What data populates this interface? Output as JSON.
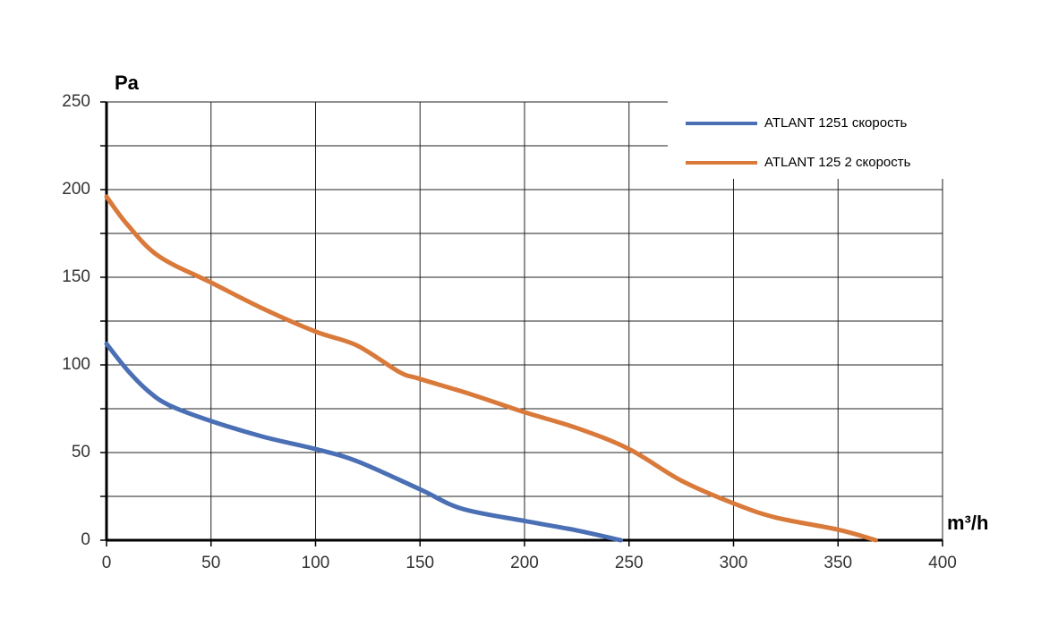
{
  "chart_data": {
    "type": "line",
    "y_label": "Pa",
    "x_label": "m³/h",
    "xlim": [
      0,
      400
    ],
    "xticks": [
      0,
      50,
      100,
      150,
      200,
      250,
      300,
      350,
      400
    ],
    "ylim": [
      0,
      250
    ],
    "yticks": [
      0,
      50,
      100,
      150,
      200,
      250
    ],
    "yminorticks": [
      25,
      75,
      125,
      175,
      225
    ],
    "grid": true,
    "legend": "top-right",
    "series": [
      {
        "name": "ATLANT 1251 скорость",
        "color": "#4a6fb5",
        "x": [
          0,
          10,
          20,
          30,
          50,
          75,
          100,
          120,
          150,
          170,
          200,
          225,
          246
        ],
        "values": [
          112,
          97,
          85,
          77,
          68,
          59,
          52,
          45,
          29,
          18,
          11,
          5.6,
          0
        ]
      },
      {
        "name": "ATLANT 125 2 скорость",
        "color": "#d9793a",
        "x": [
          0,
          10,
          25,
          50,
          75,
          100,
          120,
          140,
          150,
          175,
          200,
          225,
          250,
          275,
          300,
          320,
          350,
          368
        ],
        "values": [
          196,
          180,
          162,
          147,
          132,
          119,
          111,
          96,
          92,
          83,
          73,
          64,
          52,
          34,
          21,
          13,
          6,
          0
        ]
      }
    ]
  }
}
